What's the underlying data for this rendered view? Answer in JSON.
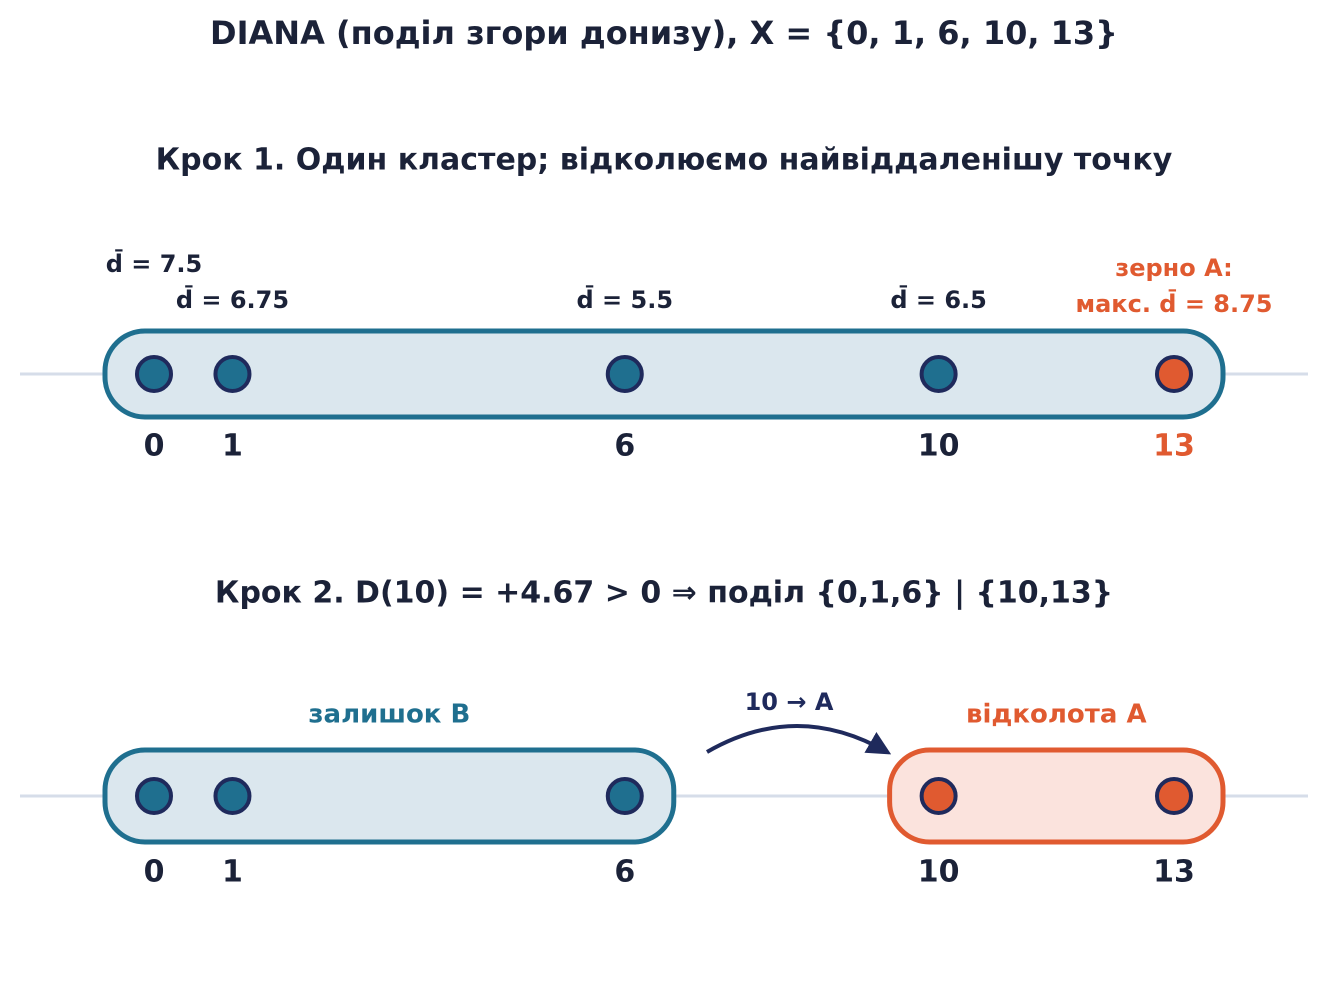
{
  "title": "DIANA (поділ згори донизу), X = {0, 1, 6, 10, 13}",
  "step1": {
    "title": "Крок 1. Один кластер; відколюємо найвіддаленішу точку",
    "points": [
      {
        "x": 0,
        "annotation": "d̄ = 7.5",
        "color": "#1f6f8f"
      },
      {
        "x": 1,
        "annotation": "d̄ = 6.75",
        "color": "#1f6f8f"
      },
      {
        "x": 6,
        "annotation": "d̄ = 5.5",
        "color": "#1f6f8f"
      },
      {
        "x": 10,
        "annotation": "d̄ = 6.5",
        "color": "#1f6f8f"
      },
      {
        "x": 13,
        "annotation": null,
        "color": "#e05a30"
      }
    ],
    "seed_label": "зерно A:",
    "seed_annotation": "макс. d̄ = 8.75"
  },
  "step2": {
    "title": "Крок 2. D(10) = +4.67 > 0 ⇒ поділ  {0,1,6} | {10,13}",
    "groups": [
      {
        "label": "залишок B",
        "color": "#1f6f8f",
        "fill": "#dbe7ee",
        "points": [
          0,
          1,
          6
        ]
      },
      {
        "label": "відколота A",
        "color": "#e05a30",
        "fill": "#fbe3dd",
        "points": [
          10,
          13
        ]
      }
    ],
    "arrow_label": "10 → A"
  }
}
